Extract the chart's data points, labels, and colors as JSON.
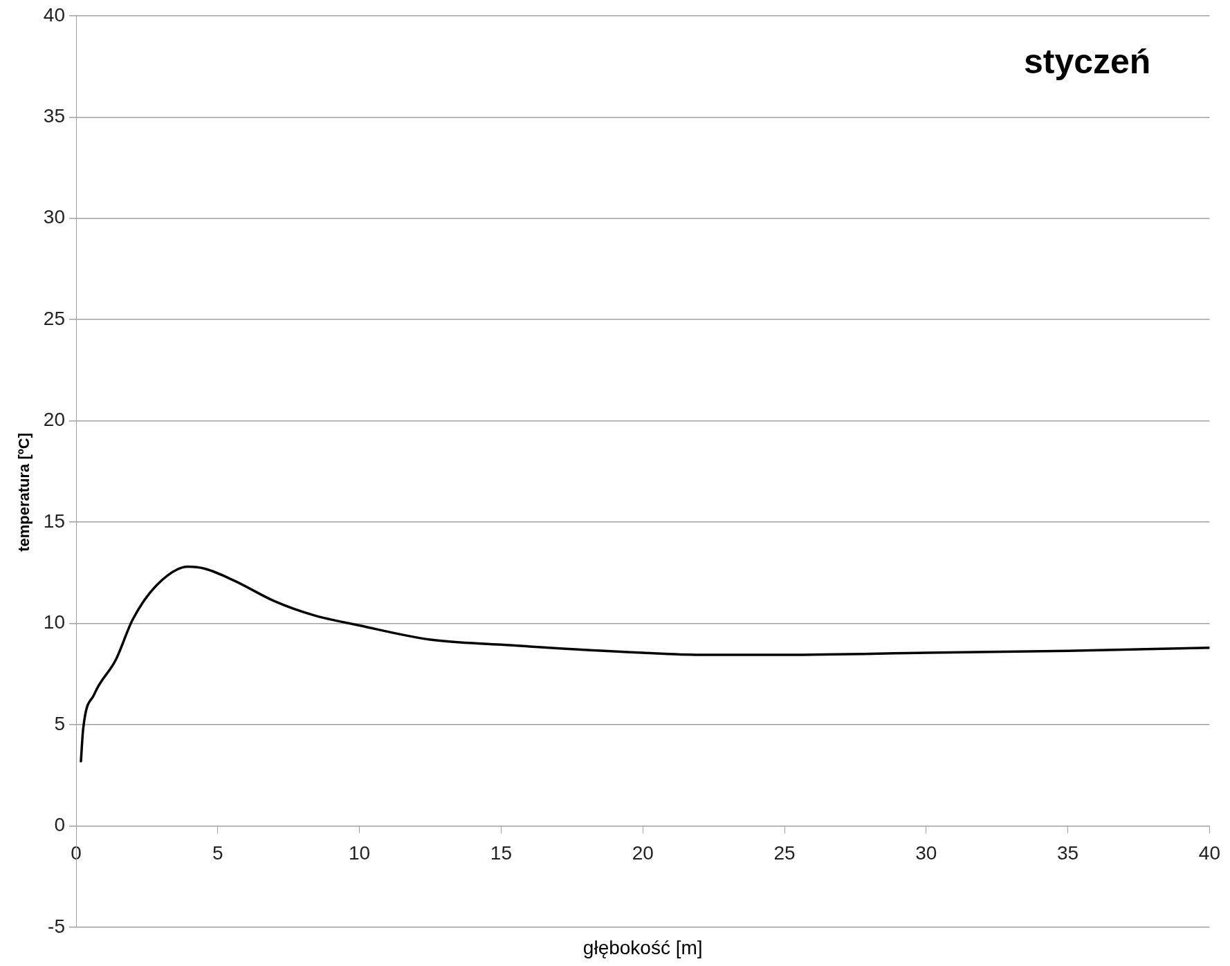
{
  "chart_data": {
    "type": "line",
    "title": "styczeń",
    "xlabel": "głębokość [m]",
    "ylabel": "temperatura [ºC]",
    "series": [
      {
        "color": "#000000",
        "x": [
          0.17,
          0.25,
          0.64,
          1.4,
          2.0,
          2.85,
          3.95,
          4.55,
          5.6,
          7.0,
          8.4,
          10,
          12.5,
          15,
          20,
          22,
          25,
          30,
          35,
          40
        ],
        "values": [
          3.2,
          4.8,
          6.5,
          8.2,
          10.2,
          11.9,
          12.8,
          12.7,
          12.1,
          11.1,
          10.4,
          9.9,
          9.2,
          8.95,
          8.55,
          8.45,
          8.45,
          8.55,
          8.65,
          8.8
        ]
      }
    ],
    "xlim": [
      0,
      40
    ],
    "xticks": [
      0,
      5,
      10,
      15,
      20,
      25,
      30,
      35,
      40
    ],
    "ylim": [
      -5,
      40
    ],
    "yticks": [
      -5,
      0,
      5,
      10,
      15,
      20,
      25,
      30,
      35,
      40
    ],
    "grid": "y",
    "legend": false,
    "marker": "none",
    "line_style": "solid"
  }
}
